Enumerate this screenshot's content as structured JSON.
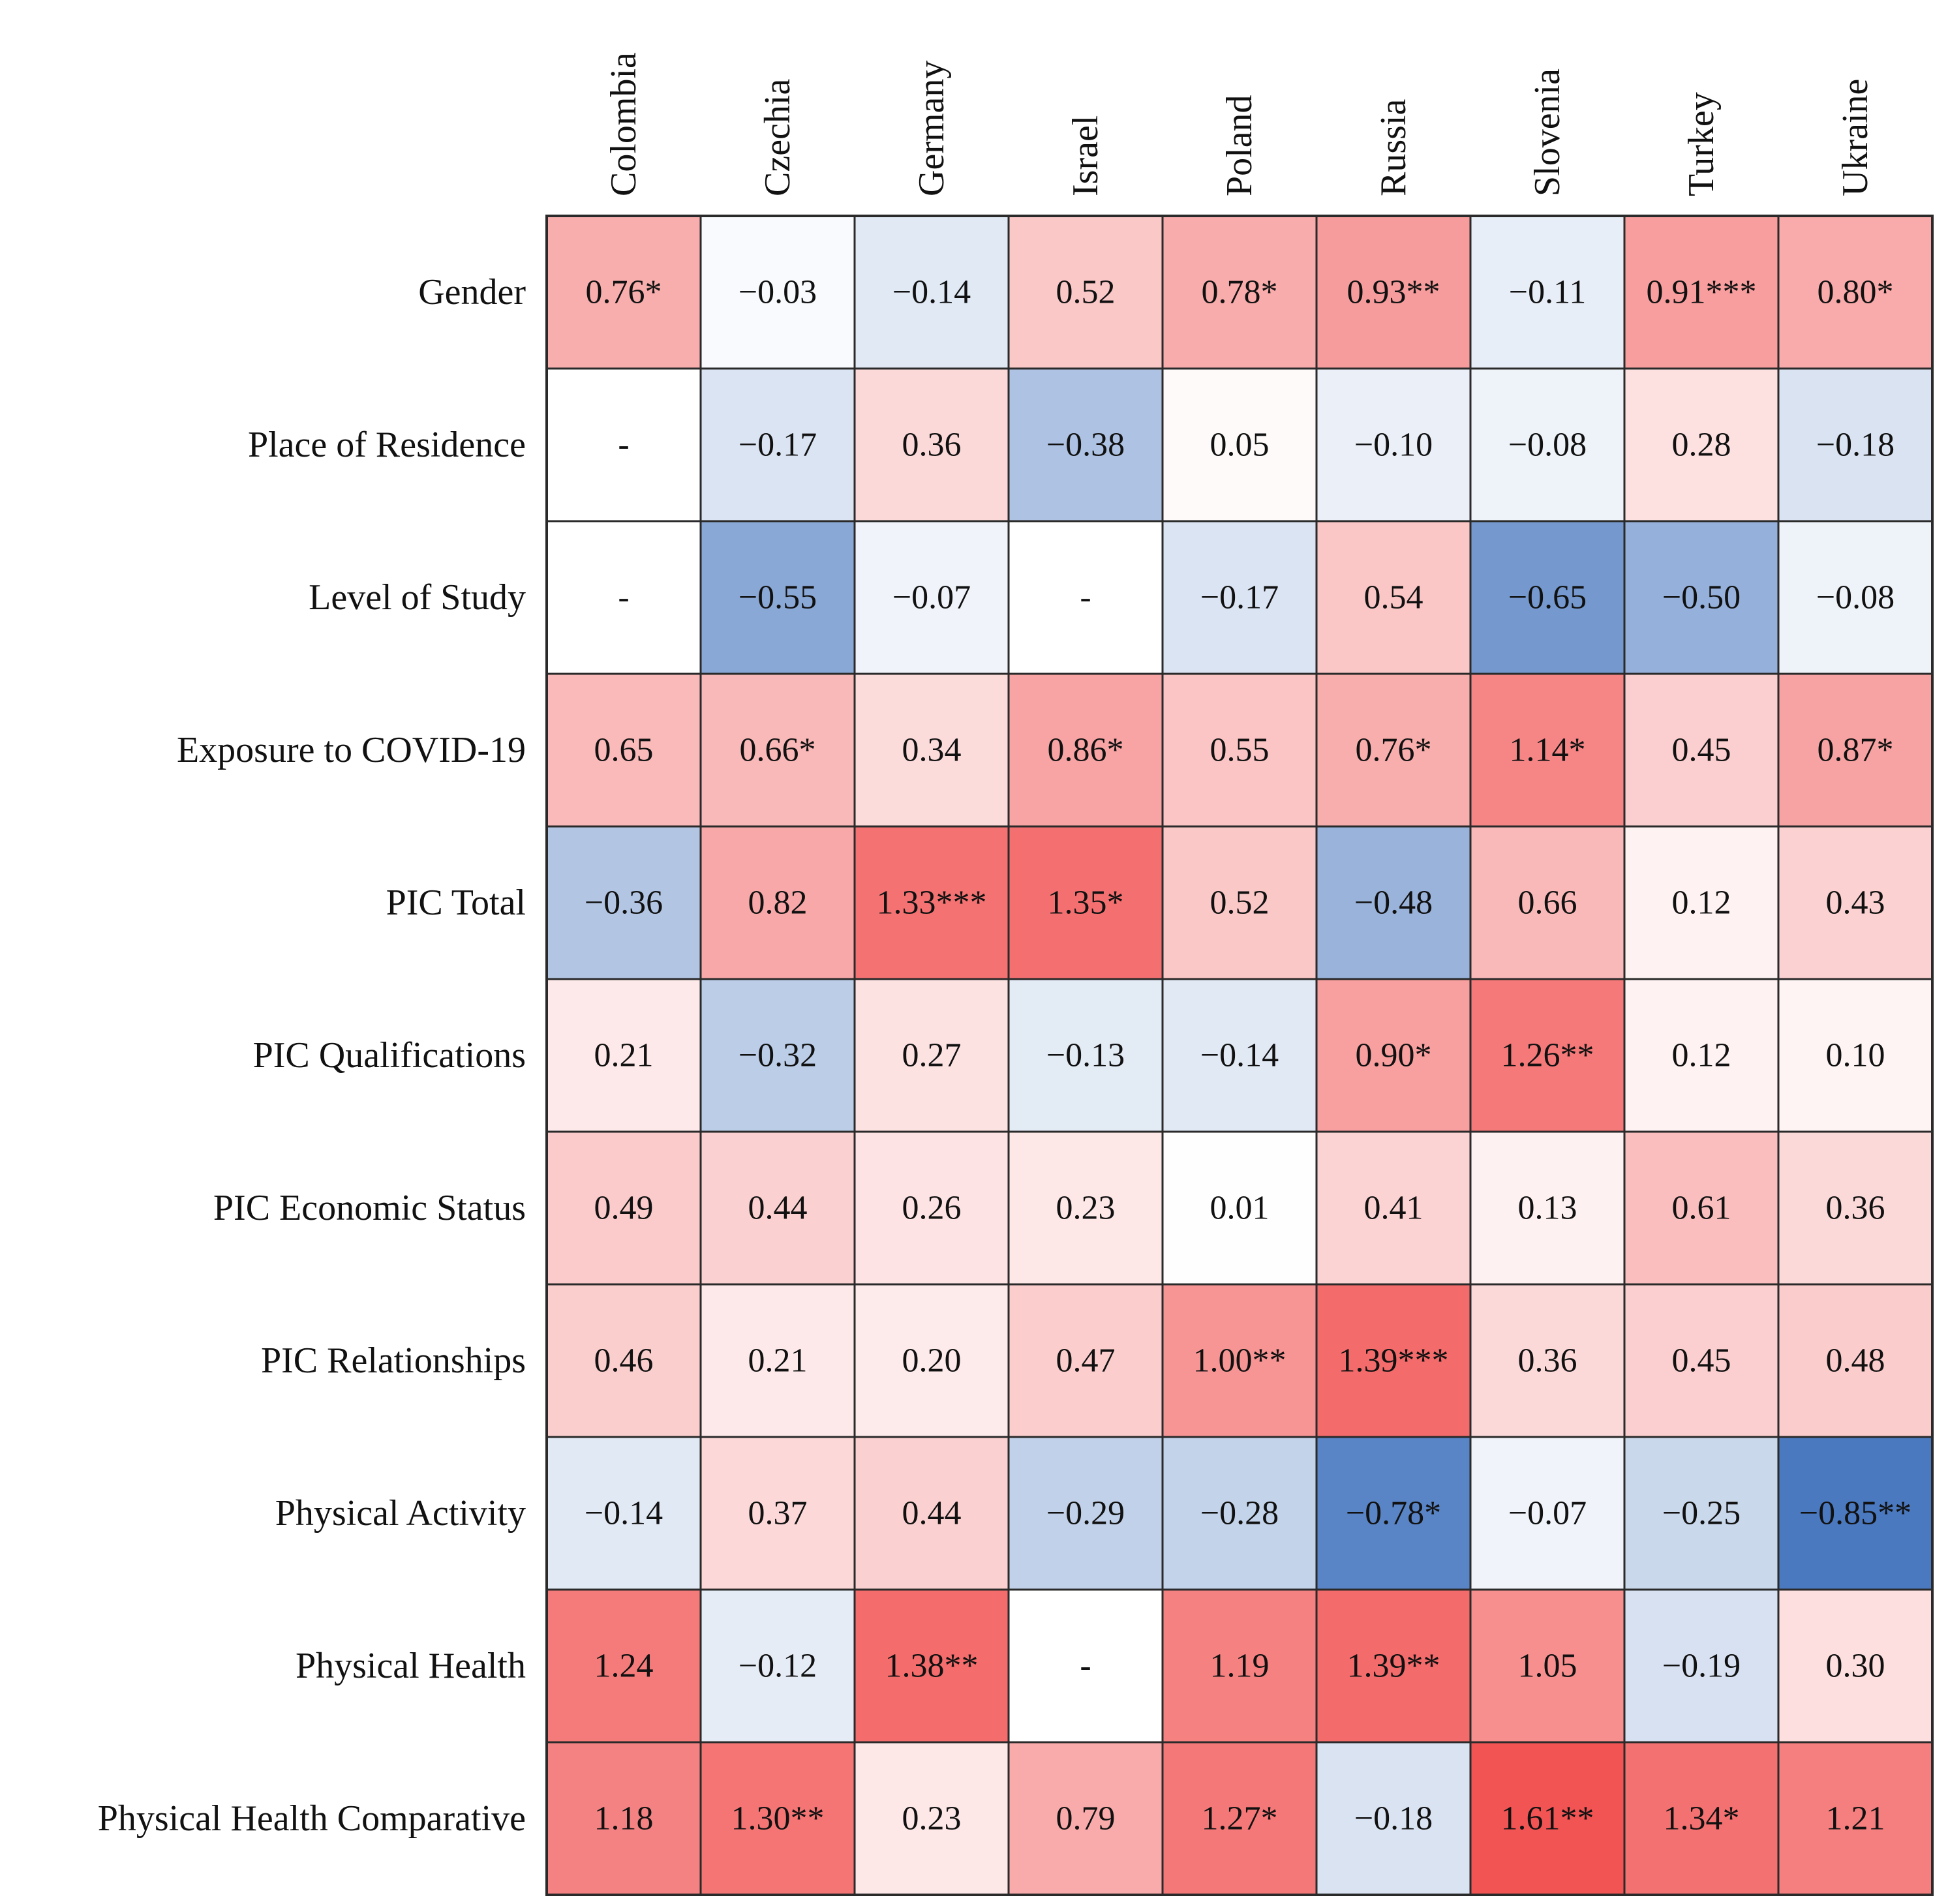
{
  "chart_data": {
    "type": "heatmap",
    "title": "",
    "columns": [
      "Colombia",
      "Czechia",
      "Germany",
      "Israel",
      "Poland",
      "Russia",
      "Slovenia",
      "Turkey",
      "Ukraine"
    ],
    "rows": [
      "Gender",
      "Place of Residence",
      "Level of Study",
      "Exposure to COVID-19",
      "PIC Total",
      "PIC Qualifications",
      "PIC Economic Status",
      "PIC Relationships",
      "Physical Activity",
      "Physical Health",
      "Physical Health Comparative"
    ],
    "values": [
      [
        0.76,
        -0.03,
        -0.14,
        0.52,
        0.78,
        0.93,
        -0.11,
        0.91,
        0.8
      ],
      [
        null,
        -0.17,
        0.36,
        -0.38,
        0.05,
        -0.1,
        -0.08,
        0.28,
        -0.18
      ],
      [
        null,
        -0.55,
        -0.07,
        null,
        -0.17,
        0.54,
        -0.65,
        -0.5,
        -0.08
      ],
      [
        0.65,
        0.66,
        0.34,
        0.86,
        0.55,
        0.76,
        1.14,
        0.45,
        0.87
      ],
      [
        -0.36,
        0.82,
        1.33,
        1.35,
        0.52,
        -0.48,
        0.66,
        0.12,
        0.43
      ],
      [
        0.21,
        -0.32,
        0.27,
        -0.13,
        -0.14,
        0.9,
        1.26,
        0.12,
        0.1
      ],
      [
        0.49,
        0.44,
        0.26,
        0.23,
        0.01,
        0.41,
        0.13,
        0.61,
        0.36
      ],
      [
        0.46,
        0.21,
        0.2,
        0.47,
        1.0,
        1.39,
        0.36,
        0.45,
        0.48
      ],
      [
        -0.14,
        0.37,
        0.44,
        -0.29,
        -0.28,
        -0.78,
        -0.07,
        -0.25,
        -0.85
      ],
      [
        1.24,
        -0.12,
        1.38,
        null,
        1.19,
        1.39,
        1.05,
        -0.19,
        0.3
      ],
      [
        1.18,
        1.3,
        0.23,
        0.79,
        1.27,
        -0.18,
        1.61,
        1.34,
        1.21
      ]
    ],
    "labels": [
      [
        "0.76*",
        "−0.03",
        "−0.14",
        "0.52",
        "0.78*",
        "0.93**",
        "−0.11",
        "0.91***",
        "0.80*"
      ],
      [
        "-",
        "−0.17",
        "0.36",
        "−0.38",
        "0.05",
        "−0.10",
        "−0.08",
        "0.28",
        "−0.18"
      ],
      [
        "-",
        "−0.55",
        "−0.07",
        "-",
        "−0.17",
        "0.54",
        "−0.65",
        "−0.50",
        "−0.08"
      ],
      [
        "0.65",
        "0.66*",
        "0.34",
        "0.86*",
        "0.55",
        "0.76*",
        "1.14*",
        "0.45",
        "0.87*"
      ],
      [
        "−0.36",
        "0.82",
        "1.33***",
        "1.35*",
        "0.52",
        "−0.48",
        "0.66",
        "0.12",
        "0.43"
      ],
      [
        "0.21",
        "−0.32",
        "0.27",
        "−0.13",
        "−0.14",
        "0.90*",
        "1.26**",
        "0.12",
        "0.10"
      ],
      [
        "0.49",
        "0.44",
        "0.26",
        "0.23",
        "0.01",
        "0.41",
        "0.13",
        "0.61",
        "0.36"
      ],
      [
        "0.46",
        "0.21",
        "0.20",
        "0.47",
        "1.00**",
        "1.39***",
        "0.36",
        "0.45",
        "0.48"
      ],
      [
        "−0.14",
        "0.37",
        "0.44",
        "−0.29",
        "−0.28",
        "−0.78*",
        "−0.07",
        "−0.25",
        "−0.85**"
      ],
      [
        "1.24",
        "−0.12",
        "1.38**",
        "-",
        "1.19",
        "1.39**",
        "1.05",
        "−0.19",
        "0.30"
      ],
      [
        "1.18",
        "1.30**",
        "0.23",
        "0.79",
        "1.27*",
        "−0.18",
        "1.61**",
        "1.34*",
        "1.21"
      ]
    ],
    "color_scale": {
      "negative": "#4a79c0",
      "neutral": "#ffffff",
      "positive": "#f25454",
      "neg_extreme": -0.85,
      "pos_extreme": 1.61,
      "missing": "#ffffff"
    }
  }
}
